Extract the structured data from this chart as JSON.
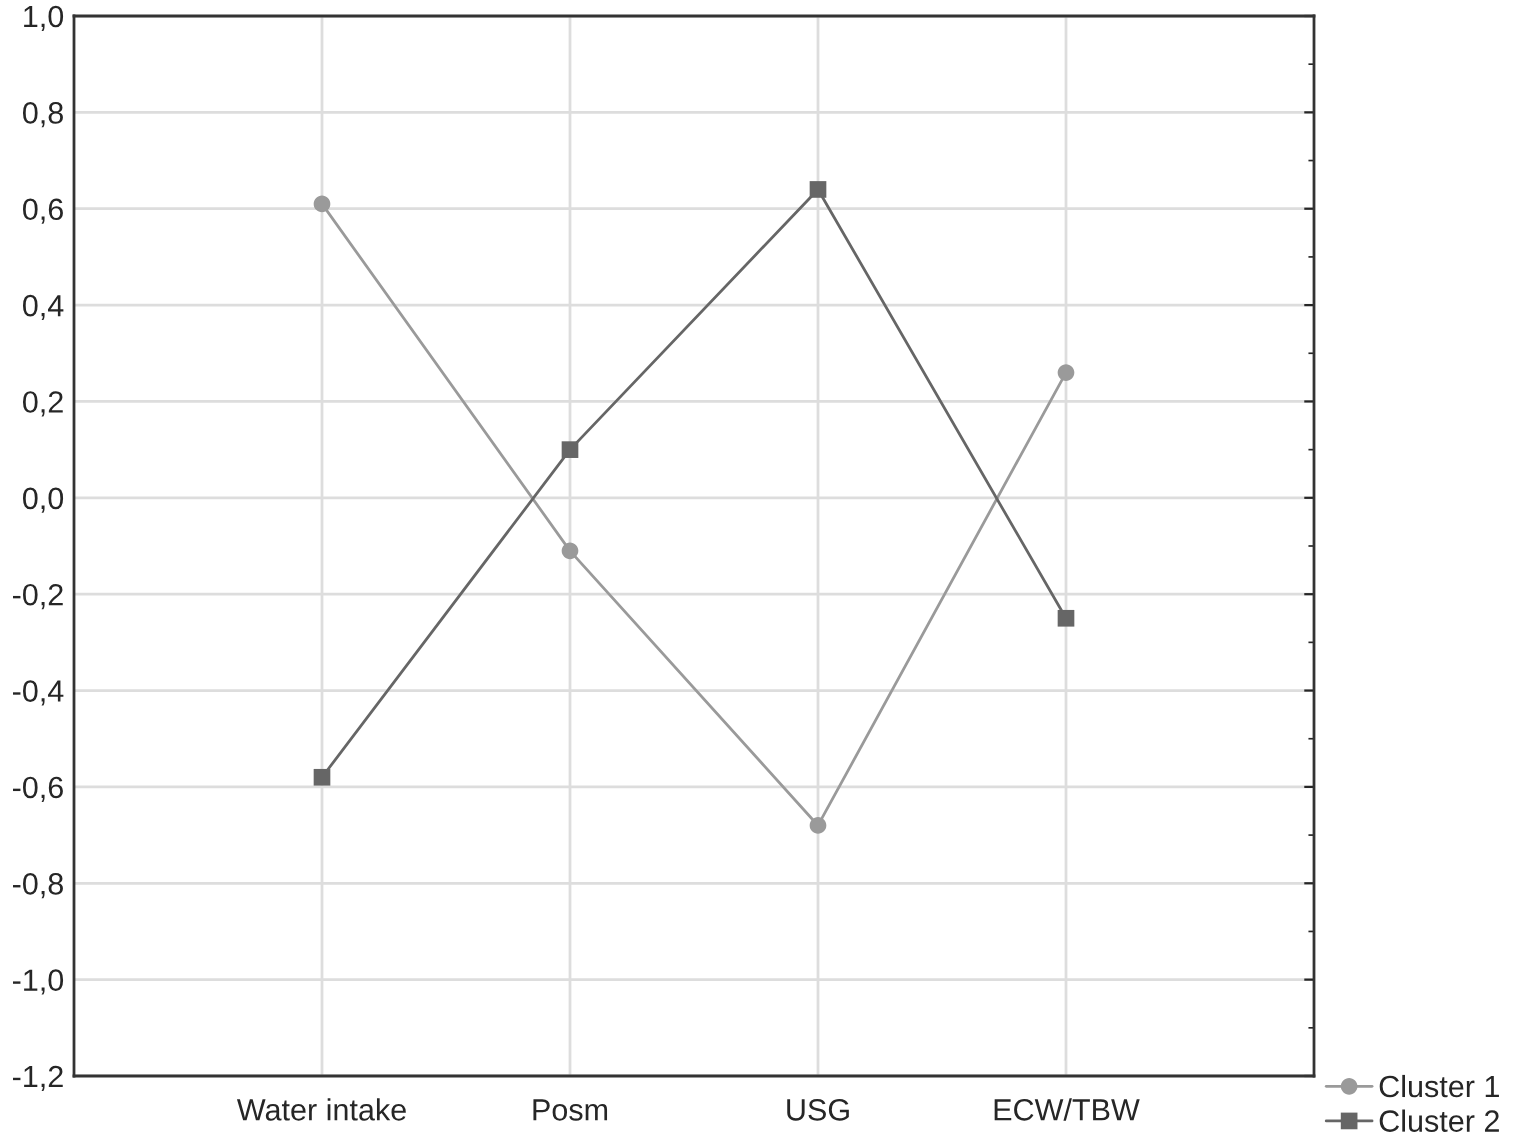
{
  "chart_data": {
    "type": "line",
    "categories": [
      "Water intake",
      "Posm",
      "USG",
      "ECW/TBW"
    ],
    "series": [
      {
        "name": "Cluster 1",
        "color": "#9a9a9a",
        "marker": "circle",
        "values": [
          0.61,
          -0.11,
          -0.68,
          0.26
        ]
      },
      {
        "name": "Cluster 2",
        "color": "#666666",
        "marker": "square",
        "values": [
          -0.58,
          0.1,
          0.64,
          -0.25
        ]
      }
    ],
    "ylim": [
      -1.2,
      1.0
    ],
    "yticks": [
      {
        "value": -1.2,
        "label": "-1,2"
      },
      {
        "value": -1.0,
        "label": "-1,0"
      },
      {
        "value": -0.8,
        "label": "-0,8"
      },
      {
        "value": -0.6,
        "label": "-0,6"
      },
      {
        "value": -0.4,
        "label": "-0,4"
      },
      {
        "value": -0.2,
        "label": "-0,2"
      },
      {
        "value": 0.0,
        "label": "0,0"
      },
      {
        "value": 0.2,
        "label": "0,2"
      },
      {
        "value": 0.4,
        "label": "0,4"
      },
      {
        "value": 0.6,
        "label": "0,6"
      },
      {
        "value": 0.8,
        "label": "0,8"
      },
      {
        "value": 1.0,
        "label": "1,0"
      }
    ],
    "grid": true,
    "legend": "bottom right",
    "line_style": "solid"
  }
}
